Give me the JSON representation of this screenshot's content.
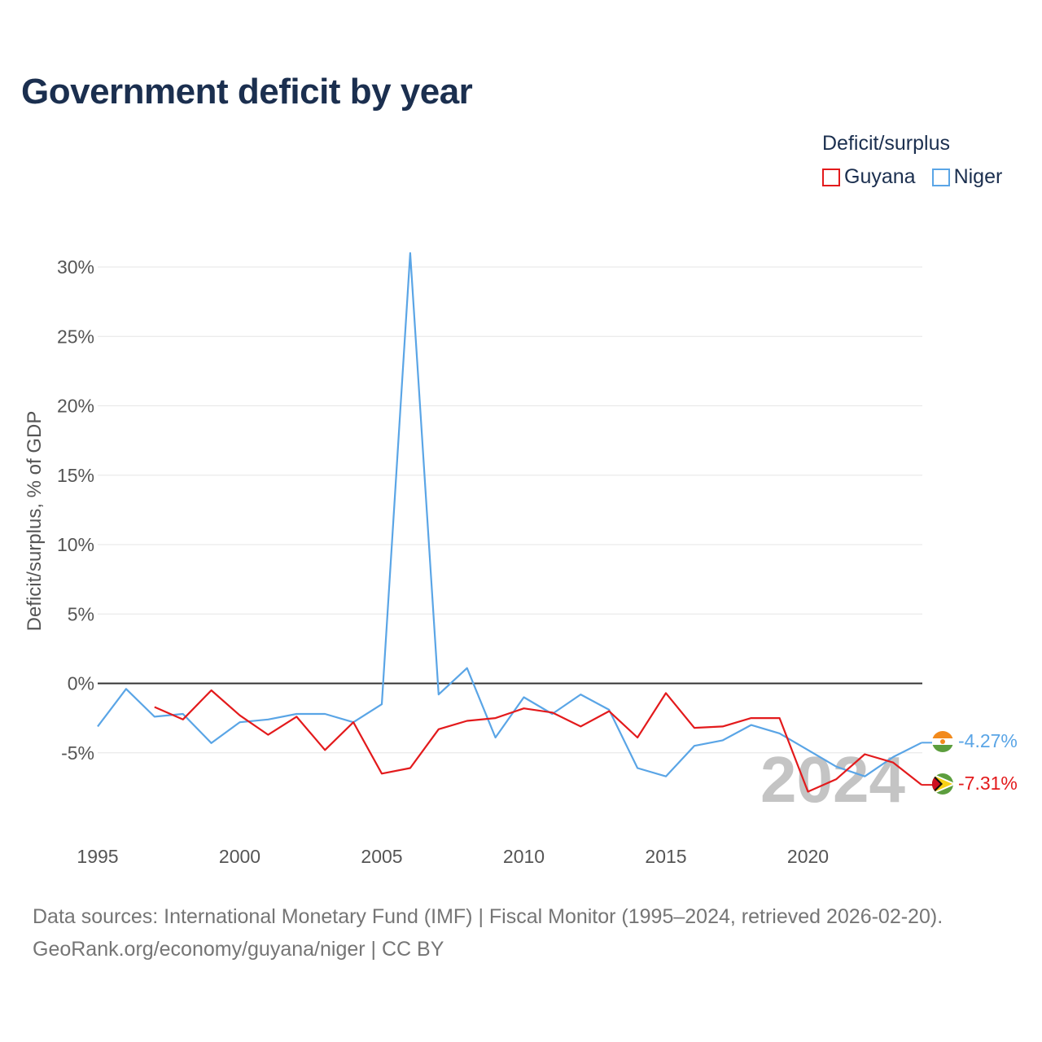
{
  "title": "Government deficit by year",
  "legend": {
    "title": "Deficit/surplus",
    "items": [
      {
        "label": "Guyana",
        "color": "#e31a1c"
      },
      {
        "label": "Niger",
        "color": "#5aa5e6"
      }
    ]
  },
  "footer": {
    "line1": "Data sources: International Monetary Fund (IMF) | Fiscal Monitor (1995–2024, retrieved 2026-02-20).",
    "line2": "GeoRank.org/economy/guyana/niger | CC BY"
  },
  "chart_data": {
    "type": "line",
    "title": "Government deficit by year",
    "ylabel": "Deficit/surplus, % of GDP",
    "xlabel": "",
    "xlim": [
      1995,
      2024
    ],
    "ylim": [
      -10,
      32
    ],
    "x_ticks": [
      1995,
      2000,
      2005,
      2010,
      2015,
      2020
    ],
    "y_ticks": [
      {
        "value": 30,
        "label": "30%"
      },
      {
        "value": 25,
        "label": "25%"
      },
      {
        "value": 20,
        "label": "20%"
      },
      {
        "value": 15,
        "label": "15%"
      },
      {
        "value": 10,
        "label": "10%"
      },
      {
        "value": 5,
        "label": "5%"
      },
      {
        "value": 0,
        "label": "0%"
      },
      {
        "value": -5,
        "label": "-5%"
      }
    ],
    "watermark_year": "2024",
    "series": [
      {
        "name": "Guyana",
        "color": "#e31a1c",
        "end_label": "-7.31%",
        "x": [
          1997,
          1998,
          1999,
          2000,
          2001,
          2002,
          2003,
          2004,
          2005,
          2006,
          2007,
          2008,
          2009,
          2010,
          2011,
          2012,
          2013,
          2014,
          2015,
          2016,
          2017,
          2018,
          2019,
          2020,
          2021,
          2022,
          2023,
          2024
        ],
        "values": [
          -1.7,
          -2.6,
          -0.5,
          -2.3,
          -3.7,
          -2.4,
          -4.8,
          -2.8,
          -6.5,
          -6.1,
          -3.3,
          -2.7,
          -2.5,
          -1.8,
          -2.1,
          -3.1,
          -2.0,
          -3.9,
          -0.7,
          -3.2,
          -3.1,
          -2.5,
          -2.5,
          -7.8,
          -6.9,
          -5.1,
          -5.7,
          -7.31
        ]
      },
      {
        "name": "Niger",
        "color": "#5aa5e6",
        "end_label": "-4.27%",
        "x": [
          1995,
          1996,
          1997,
          1998,
          1999,
          2000,
          2001,
          2002,
          2003,
          2004,
          2005,
          2006,
          2007,
          2008,
          2009,
          2010,
          2011,
          2012,
          2013,
          2014,
          2015,
          2016,
          2017,
          2018,
          2019,
          2020,
          2021,
          2022,
          2023,
          2024
        ],
        "values": [
          -3.1,
          -0.4,
          -2.4,
          -2.2,
          -4.3,
          -2.8,
          -2.6,
          -2.2,
          -2.2,
          -2.8,
          -1.5,
          31.0,
          -0.8,
          1.1,
          -3.9,
          -1.0,
          -2.2,
          -0.8,
          -1.9,
          -6.1,
          -6.7,
          -4.5,
          -4.1,
          -3.0,
          -3.6,
          -4.8,
          -6.0,
          -6.7,
          -5.3,
          -4.27
        ]
      }
    ]
  }
}
